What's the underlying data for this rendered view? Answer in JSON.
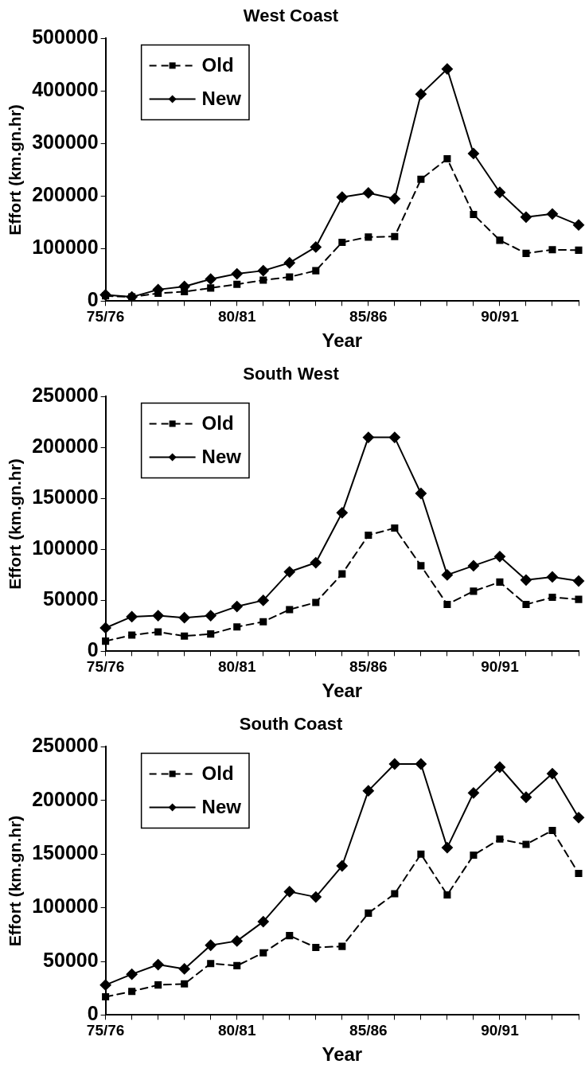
{
  "chart_data": [
    {
      "type": "line",
      "title": "West Coast",
      "xlabel": "Year",
      "ylabel": "Effort (km.gn.hr)",
      "categories": [
        "75/76",
        null,
        null,
        null,
        null,
        "80/81",
        null,
        null,
        null,
        null,
        "85/86",
        null,
        null,
        null,
        null,
        "90/91",
        null,
        null,
        null
      ],
      "ylim": [
        0,
        500000
      ],
      "yticks": [
        0,
        100000,
        200000,
        300000,
        400000,
        500000
      ],
      "grid": false,
      "legend": "top left",
      "series": [
        {
          "name": "Old",
          "color": "#000000",
          "marker": "square",
          "line_style": "dashed",
          "values": [
            10000,
            8000,
            15000,
            18000,
            25000,
            32000,
            40000,
            46000,
            58000,
            112000,
            122000,
            123000,
            232000,
            271000,
            165000,
            116000,
            91000,
            98000,
            97000
          ]
        },
        {
          "name": "New",
          "color": "#000000",
          "marker": "diamond",
          "line_style": "solid",
          "values": [
            12000,
            8000,
            22000,
            28000,
            42000,
            52000,
            58000,
            73000,
            103000,
            198000,
            206000,
            195000,
            394000,
            442000,
            281000,
            207000,
            160000,
            166000,
            145000
          ]
        }
      ]
    },
    {
      "type": "line",
      "title": "South West",
      "xlabel": "Year",
      "ylabel": "Effort (km.gn.hr)",
      "categories": [
        "75/76",
        null,
        null,
        null,
        null,
        "80/81",
        null,
        null,
        null,
        null,
        "85/86",
        null,
        null,
        null,
        null,
        "90/91",
        null,
        null,
        null
      ],
      "ylim": [
        0,
        250000
      ],
      "yticks": [
        0,
        50000,
        100000,
        150000,
        200000,
        250000
      ],
      "grid": false,
      "legend": "top left",
      "series": [
        {
          "name": "Old",
          "color": "#000000",
          "marker": "square",
          "line_style": "dashed",
          "values": [
            10000,
            16000,
            19000,
            15000,
            17000,
            24000,
            29000,
            41000,
            48000,
            76000,
            114000,
            121000,
            84000,
            46000,
            59000,
            68000,
            46000,
            53000,
            51000
          ]
        },
        {
          "name": "New",
          "color": "#000000",
          "marker": "diamond",
          "line_style": "solid",
          "values": [
            23000,
            34000,
            35000,
            33000,
            35000,
            44000,
            50000,
            78000,
            87000,
            136000,
            210000,
            210000,
            155000,
            75000,
            84000,
            93000,
            70000,
            73000,
            69000
          ]
        }
      ]
    },
    {
      "type": "line",
      "title": "South Coast",
      "xlabel": "Year",
      "ylabel": "Effort (km.gn.hr)",
      "categories": [
        "75/76",
        null,
        null,
        null,
        null,
        "80/81",
        null,
        null,
        null,
        null,
        "85/86",
        null,
        null,
        null,
        null,
        "90/91",
        null,
        null,
        null
      ],
      "ylim": [
        0,
        250000
      ],
      "yticks": [
        0,
        50000,
        100000,
        150000,
        200000,
        250000
      ],
      "grid": false,
      "legend": "top left",
      "series": [
        {
          "name": "Old",
          "color": "#000000",
          "marker": "square",
          "line_style": "dashed",
          "values": [
            17000,
            22000,
            28000,
            29000,
            48000,
            46000,
            58000,
            74000,
            63000,
            64000,
            95000,
            113000,
            150000,
            112000,
            149000,
            164000,
            159000,
            172000,
            132000
          ]
        },
        {
          "name": "New",
          "color": "#000000",
          "marker": "diamond",
          "line_style": "solid",
          "values": [
            28000,
            38000,
            47000,
            43000,
            65000,
            69000,
            87000,
            115000,
            110000,
            139000,
            209000,
            234000,
            234000,
            156000,
            207000,
            231000,
            203000,
            225000,
            184000
          ]
        }
      ]
    }
  ]
}
